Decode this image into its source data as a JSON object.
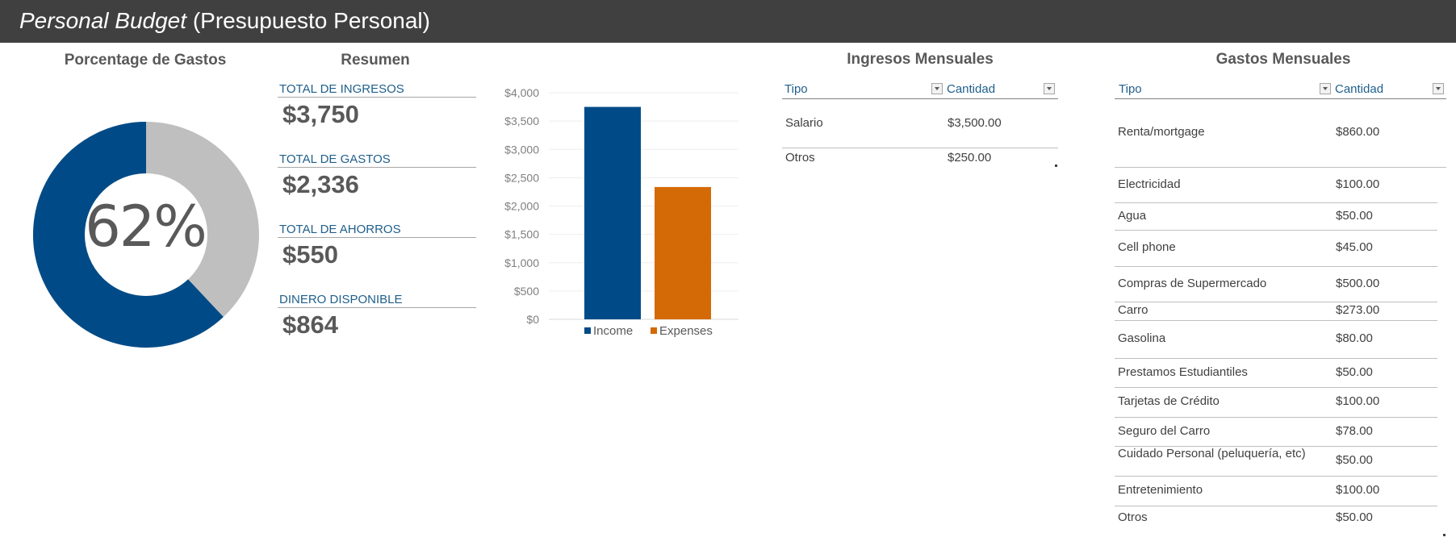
{
  "header": {
    "title_italic": "Personal Budget",
    "title_rest": "(Presupuesto Personal)"
  },
  "sections": {
    "porcentaje": "Porcentage de Gastos",
    "resumen": "Resumen",
    "ingresos": "Ingresos Mensuales",
    "gastos": "Gastos Mensuales"
  },
  "donut": {
    "label": "62%",
    "percent": 0.62,
    "colors": {
      "filled": "#004b87",
      "rest": "#bfbfbf"
    }
  },
  "summary": [
    {
      "label": "TOTAL DE INGRESOS",
      "value": "$3,750"
    },
    {
      "label": "TOTAL DE GASTOS",
      "value": "$2,336"
    },
    {
      "label": "TOTAL DE AHORROS",
      "value": "$550"
    },
    {
      "label": "DINERO DISPONIBLE",
      "value": "$864"
    }
  ],
  "chart_data": {
    "type": "bar",
    "categories": [
      "Income",
      "Expenses"
    ],
    "values": [
      3750,
      2336
    ],
    "colors": [
      "#004b87",
      "#d46a06"
    ],
    "ylim": [
      0,
      4000
    ],
    "yticks": [
      "$0",
      "$500",
      "$1,000",
      "$1,500",
      "$2,000",
      "$2,500",
      "$3,000",
      "$3,500",
      "$4,000"
    ],
    "grid": true,
    "legend": "bottom",
    "legend_labels": [
      "Income",
      "Expenses"
    ]
  },
  "ingresos": {
    "col_tipo": "Tipo",
    "col_cantidad": "Cantidad",
    "rows": [
      {
        "tipo": "Salario",
        "cantidad": "$3,500.00"
      },
      {
        "tipo": "Otros",
        "cantidad": "$250.00"
      }
    ]
  },
  "gastos": {
    "col_tipo": "Tipo",
    "col_cantidad": "Cantidad",
    "rows": [
      {
        "tipo": "Renta/mortgage",
        "cantidad": "$860.00"
      },
      {
        "tipo": "Electricidad",
        "cantidad": "$100.00"
      },
      {
        "tipo": "Agua",
        "cantidad": "$50.00"
      },
      {
        "tipo": "Cell phone",
        "cantidad": "$45.00"
      },
      {
        "tipo": "Compras de Supermercado",
        "cantidad": "$500.00"
      },
      {
        "tipo": "Carro",
        "cantidad": "$273.00"
      },
      {
        "tipo": "Gasolina",
        "cantidad": "$80.00"
      },
      {
        "tipo": "Prestamos Estudiantiles",
        "cantidad": "$50.00"
      },
      {
        "tipo": "Tarjetas de Crédito",
        "cantidad": "$100.00"
      },
      {
        "tipo": "Seguro del Carro",
        "cantidad": "$78.00"
      },
      {
        "tipo": "Cuidado Personal (peluquería, etc)",
        "cantidad": "$50.00"
      },
      {
        "tipo": "Entretenimiento",
        "cantidad": "$100.00"
      },
      {
        "tipo": "Otros",
        "cantidad": "$50.00"
      }
    ]
  }
}
